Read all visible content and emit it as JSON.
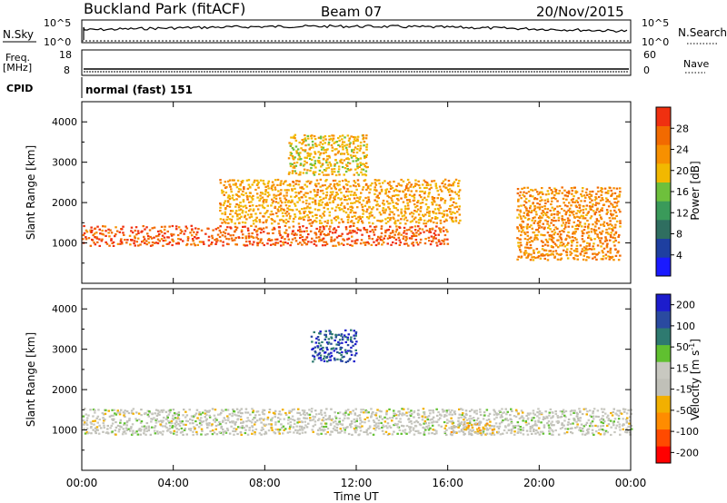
{
  "header": {
    "site": "Buckland Park (fitACF)",
    "beam": "Beam 07",
    "date": "20/Nov/2015"
  },
  "panels": {
    "nsky_label": "N.Sky",
    "nsearch_label": "N.Search",
    "freq_label_1": "Freq.",
    "freq_label_2": "[MHz]",
    "nave_label": "Nave",
    "cpid_label": "CPID",
    "cpid_value": "normal (fast) 151",
    "noise_ticks_left": [
      "10^5",
      "10^0"
    ],
    "noise_ticks_right": [
      "10^5",
      "10^0"
    ],
    "freq_ticks": [
      "18",
      "8"
    ],
    "nave_ticks": [
      "60",
      "0"
    ]
  },
  "colors": {
    "power_scale": [
      "#1a1aff",
      "#1e3fa0",
      "#2f6e60",
      "#3a9a5a",
      "#6ec03c",
      "#f2b800",
      "#f79000",
      "#f26a00",
      "#f03010"
    ],
    "velocity_scale": [
      "#ff0000",
      "#ff4a00",
      "#ff8c00",
      "#f2b000",
      "#c0c0b8",
      "#c8c8c0",
      "#60c030",
      "#2e7a70",
      "#2a4aa0",
      "#1c1ccc"
    ],
    "ground_scatter": "#c0c0b8"
  },
  "chart_data": [
    {
      "type": "heatmap",
      "title": "",
      "xlabel": "Time UT",
      "ylabel": "Slant Range [km]",
      "x_ticks": [
        "00:00",
        "04:00",
        "08:00",
        "12:00",
        "16:00",
        "20:00",
        "00:00"
      ],
      "xlim_hours": [
        0,
        24
      ],
      "ylim": [
        0,
        4500
      ],
      "y_ticks": [
        1000,
        2000,
        3000,
        4000
      ],
      "colorbar": {
        "label": "Power [dB]",
        "ticks": [
          4,
          8,
          12,
          16,
          20,
          24,
          28
        ],
        "range": [
          0,
          32
        ]
      },
      "features": [
        {
          "name": "main scatter band",
          "t0": 0,
          "t1": 16,
          "r0": 950,
          "r1": 1450,
          "value": 28
        },
        {
          "name": "rising echo band",
          "t0": 6,
          "t1": 16.5,
          "r0": 1500,
          "r1": 2600,
          "value": 22
        },
        {
          "name": "upper patch",
          "t0": 9,
          "t1": 12.5,
          "r0": 2700,
          "r1": 3700,
          "value": 20
        },
        {
          "name": "descending band",
          "t0": 19,
          "t1": 23.5,
          "r0": 600,
          "r1": 2400,
          "value": 24
        }
      ]
    },
    {
      "type": "heatmap",
      "title": "",
      "xlabel": "Time UT",
      "ylabel": "Slant Range [km]",
      "x_ticks": [
        "00:00",
        "04:00",
        "08:00",
        "12:00",
        "16:00",
        "20:00",
        "00:00"
      ],
      "xlim_hours": [
        0,
        24
      ],
      "ylim": [
        0,
        4500
      ],
      "y_ticks": [
        1000,
        2000,
        3000,
        4000
      ],
      "colorbar": {
        "label": "Velocity [m s^-1]",
        "ticks": [
          200,
          100,
          50,
          15,
          -15,
          -50,
          -100,
          -200
        ],
        "range": [
          -250,
          250
        ]
      },
      "features": [
        {
          "name": "ground scatter band",
          "t0": 0,
          "t1": 24,
          "r0": 900,
          "r1": 1550,
          "value": 0
        },
        {
          "name": "negative velocity patch",
          "t0": 16,
          "t1": 18,
          "r0": 900,
          "r1": 1250,
          "value": -60
        },
        {
          "name": "positive velocity patch",
          "t0": 10,
          "t1": 12,
          "r0": 2700,
          "r1": 3500,
          "value": 180
        }
      ]
    }
  ]
}
